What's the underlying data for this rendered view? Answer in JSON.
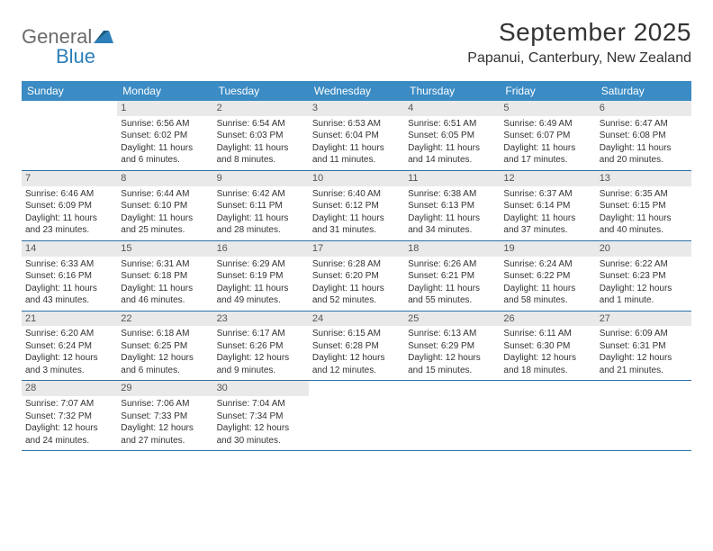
{
  "brand": {
    "line1": "General",
    "line2": "Blue"
  },
  "title": "September 2025",
  "subtitle": "Papanui, Canterbury, New Zealand",
  "colors": {
    "header_bg": "#3b8bc4",
    "header_text": "#ffffff",
    "daynum_bg": "#e9e9e9",
    "rule": "#2f6fa3",
    "text": "#333333",
    "logo_gray": "#6b6b6b",
    "logo_blue": "#2c7fb8"
  },
  "fonts": {
    "title_pt": 28,
    "subtitle_pt": 16,
    "dow_pt": 12,
    "body_pt": 10
  },
  "dow": [
    "Sunday",
    "Monday",
    "Tuesday",
    "Wednesday",
    "Thursday",
    "Friday",
    "Saturday"
  ],
  "weeks": [
    [
      null,
      {
        "n": "1",
        "sr": "Sunrise: 6:56 AM",
        "ss": "Sunset: 6:02 PM",
        "d1": "Daylight: 11 hours",
        "d2": "and 6 minutes."
      },
      {
        "n": "2",
        "sr": "Sunrise: 6:54 AM",
        "ss": "Sunset: 6:03 PM",
        "d1": "Daylight: 11 hours",
        "d2": "and 8 minutes."
      },
      {
        "n": "3",
        "sr": "Sunrise: 6:53 AM",
        "ss": "Sunset: 6:04 PM",
        "d1": "Daylight: 11 hours",
        "d2": "and 11 minutes."
      },
      {
        "n": "4",
        "sr": "Sunrise: 6:51 AM",
        "ss": "Sunset: 6:05 PM",
        "d1": "Daylight: 11 hours",
        "d2": "and 14 minutes."
      },
      {
        "n": "5",
        "sr": "Sunrise: 6:49 AM",
        "ss": "Sunset: 6:07 PM",
        "d1": "Daylight: 11 hours",
        "d2": "and 17 minutes."
      },
      {
        "n": "6",
        "sr": "Sunrise: 6:47 AM",
        "ss": "Sunset: 6:08 PM",
        "d1": "Daylight: 11 hours",
        "d2": "and 20 minutes."
      }
    ],
    [
      {
        "n": "7",
        "sr": "Sunrise: 6:46 AM",
        "ss": "Sunset: 6:09 PM",
        "d1": "Daylight: 11 hours",
        "d2": "and 23 minutes."
      },
      {
        "n": "8",
        "sr": "Sunrise: 6:44 AM",
        "ss": "Sunset: 6:10 PM",
        "d1": "Daylight: 11 hours",
        "d2": "and 25 minutes."
      },
      {
        "n": "9",
        "sr": "Sunrise: 6:42 AM",
        "ss": "Sunset: 6:11 PM",
        "d1": "Daylight: 11 hours",
        "d2": "and 28 minutes."
      },
      {
        "n": "10",
        "sr": "Sunrise: 6:40 AM",
        "ss": "Sunset: 6:12 PM",
        "d1": "Daylight: 11 hours",
        "d2": "and 31 minutes."
      },
      {
        "n": "11",
        "sr": "Sunrise: 6:38 AM",
        "ss": "Sunset: 6:13 PM",
        "d1": "Daylight: 11 hours",
        "d2": "and 34 minutes."
      },
      {
        "n": "12",
        "sr": "Sunrise: 6:37 AM",
        "ss": "Sunset: 6:14 PM",
        "d1": "Daylight: 11 hours",
        "d2": "and 37 minutes."
      },
      {
        "n": "13",
        "sr": "Sunrise: 6:35 AM",
        "ss": "Sunset: 6:15 PM",
        "d1": "Daylight: 11 hours",
        "d2": "and 40 minutes."
      }
    ],
    [
      {
        "n": "14",
        "sr": "Sunrise: 6:33 AM",
        "ss": "Sunset: 6:16 PM",
        "d1": "Daylight: 11 hours",
        "d2": "and 43 minutes."
      },
      {
        "n": "15",
        "sr": "Sunrise: 6:31 AM",
        "ss": "Sunset: 6:18 PM",
        "d1": "Daylight: 11 hours",
        "d2": "and 46 minutes."
      },
      {
        "n": "16",
        "sr": "Sunrise: 6:29 AM",
        "ss": "Sunset: 6:19 PM",
        "d1": "Daylight: 11 hours",
        "d2": "and 49 minutes."
      },
      {
        "n": "17",
        "sr": "Sunrise: 6:28 AM",
        "ss": "Sunset: 6:20 PM",
        "d1": "Daylight: 11 hours",
        "d2": "and 52 minutes."
      },
      {
        "n": "18",
        "sr": "Sunrise: 6:26 AM",
        "ss": "Sunset: 6:21 PM",
        "d1": "Daylight: 11 hours",
        "d2": "and 55 minutes."
      },
      {
        "n": "19",
        "sr": "Sunrise: 6:24 AM",
        "ss": "Sunset: 6:22 PM",
        "d1": "Daylight: 11 hours",
        "d2": "and 58 minutes."
      },
      {
        "n": "20",
        "sr": "Sunrise: 6:22 AM",
        "ss": "Sunset: 6:23 PM",
        "d1": "Daylight: 12 hours",
        "d2": "and 1 minute."
      }
    ],
    [
      {
        "n": "21",
        "sr": "Sunrise: 6:20 AM",
        "ss": "Sunset: 6:24 PM",
        "d1": "Daylight: 12 hours",
        "d2": "and 3 minutes."
      },
      {
        "n": "22",
        "sr": "Sunrise: 6:18 AM",
        "ss": "Sunset: 6:25 PM",
        "d1": "Daylight: 12 hours",
        "d2": "and 6 minutes."
      },
      {
        "n": "23",
        "sr": "Sunrise: 6:17 AM",
        "ss": "Sunset: 6:26 PM",
        "d1": "Daylight: 12 hours",
        "d2": "and 9 minutes."
      },
      {
        "n": "24",
        "sr": "Sunrise: 6:15 AM",
        "ss": "Sunset: 6:28 PM",
        "d1": "Daylight: 12 hours",
        "d2": "and 12 minutes."
      },
      {
        "n": "25",
        "sr": "Sunrise: 6:13 AM",
        "ss": "Sunset: 6:29 PM",
        "d1": "Daylight: 12 hours",
        "d2": "and 15 minutes."
      },
      {
        "n": "26",
        "sr": "Sunrise: 6:11 AM",
        "ss": "Sunset: 6:30 PM",
        "d1": "Daylight: 12 hours",
        "d2": "and 18 minutes."
      },
      {
        "n": "27",
        "sr": "Sunrise: 6:09 AM",
        "ss": "Sunset: 6:31 PM",
        "d1": "Daylight: 12 hours",
        "d2": "and 21 minutes."
      }
    ],
    [
      {
        "n": "28",
        "sr": "Sunrise: 7:07 AM",
        "ss": "Sunset: 7:32 PM",
        "d1": "Daylight: 12 hours",
        "d2": "and 24 minutes."
      },
      {
        "n": "29",
        "sr": "Sunrise: 7:06 AM",
        "ss": "Sunset: 7:33 PM",
        "d1": "Daylight: 12 hours",
        "d2": "and 27 minutes."
      },
      {
        "n": "30",
        "sr": "Sunrise: 7:04 AM",
        "ss": "Sunset: 7:34 PM",
        "d1": "Daylight: 12 hours",
        "d2": "and 30 minutes."
      },
      null,
      null,
      null,
      null
    ]
  ]
}
